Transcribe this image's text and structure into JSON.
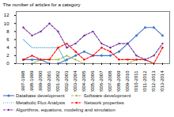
{
  "chart_data": {
    "type": "line",
    "ylabel": "The number of articles for a category",
    "categories": [
      "1997-1998",
      "1998-1999",
      "1999-2000",
      "2000-2001",
      "2001-2002",
      "2002-2003",
      "2003-2004",
      "2004-2005",
      "2005-2006",
      "2006-2007",
      "2007-2008",
      "2008-2009",
      "2009-2010",
      "2010-2011",
      "2011-2012",
      "2012-2013",
      "2013-2014"
    ],
    "series": [
      {
        "name": "Database development",
        "color": "#4472c4",
        "line_style": "solid",
        "marker": "circle",
        "values": [
          1,
          1,
          1,
          0,
          0,
          1,
          2,
          3,
          2,
          2,
          2,
          3,
          5,
          7,
          9,
          9,
          7
        ]
      },
      {
        "name": "Software development",
        "color": "#9bbb59",
        "line_style": "dashed",
        "marker": "point",
        "values": [
          0,
          0,
          1,
          1,
          1,
          2,
          1,
          0,
          0,
          0,
          0,
          0,
          0,
          1,
          1,
          0,
          0
        ]
      },
      {
        "name": "Metabolic Flux Analysis",
        "color": "#4bacc6",
        "line_style": "dotted",
        "marker": "none",
        "values": [
          6,
          4,
          4,
          4,
          4,
          0,
          0,
          0,
          0,
          0,
          0,
          0,
          0,
          0,
          0,
          0,
          0
        ]
      },
      {
        "name": "Network properties",
        "color": "#ff0000",
        "line_style": "dashed",
        "marker": "point",
        "values": [
          1,
          2,
          1,
          1,
          4,
          5,
          3,
          1,
          2,
          4,
          3,
          1,
          1,
          1,
          1,
          0,
          4
        ]
      },
      {
        "name": "Algorithms, equations, modeling and simulation",
        "color": "#7030a0",
        "line_style": "dashed",
        "marker": "point",
        "values": [
          9,
          7,
          8,
          10,
          8,
          4,
          5,
          7,
          8,
          5,
          4,
          5,
          5,
          2,
          1,
          2,
          5
        ]
      }
    ],
    "ylim": [
      0,
      13
    ],
    "yticks": [
      0,
      2,
      4,
      6,
      8,
      10,
      12
    ],
    "legend": "bottom"
  }
}
